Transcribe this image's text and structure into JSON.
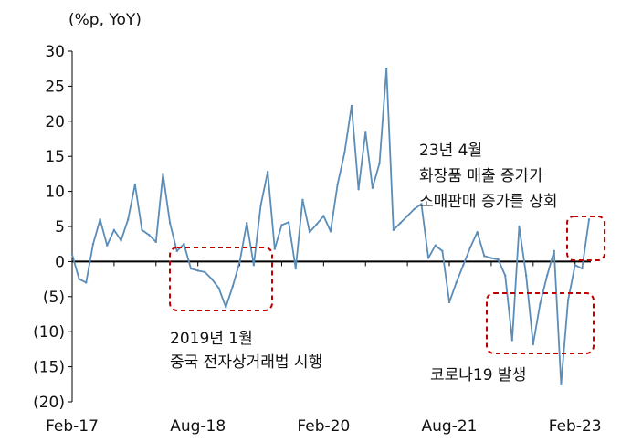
{
  "chart_data": {
    "type": "line",
    "unit_label": "(%p, YoY)",
    "ylim": [
      -20,
      30
    ],
    "y_ticks": [
      "30",
      "25",
      "20",
      "15",
      "10",
      "5",
      "0",
      "(5)",
      "(10)",
      "(15)",
      "(20)"
    ],
    "y_tick_values": [
      30,
      25,
      20,
      15,
      10,
      5,
      0,
      -5,
      -10,
      -15,
      -20
    ],
    "x_tick_labels": [
      "Feb-17",
      "Aug-18",
      "Feb-20",
      "Aug-21",
      "Feb-23"
    ],
    "x_tick_index": [
      0,
      18,
      36,
      54,
      72
    ],
    "grid": false,
    "line_color": "#5b8db8",
    "series": [
      {
        "x": [
          "2017-02",
          "2017-03",
          "2017-04",
          "2017-05",
          "2017-06",
          "2017-07",
          "2017-08",
          "2017-09",
          "2017-10",
          "2017-11",
          "2017-12",
          "2018-01",
          "2018-02",
          "2018-03",
          "2018-04",
          "2018-05",
          "2018-06",
          "2018-07",
          "2018-08",
          "2018-09",
          "2018-10",
          "2018-11",
          "2018-12",
          "2019-01",
          "2019-02",
          "2019-03",
          "2019-04",
          "2019-05",
          "2019-06",
          "2019-07",
          "2019-08",
          "2019-09",
          "2019-10",
          "2019-11",
          "2019-12",
          "2020-01",
          "2020-02",
          "2020-03",
          "2020-04",
          "2020-05",
          "2020-06",
          "2020-07",
          "2020-08",
          "2020-09",
          "2020-10",
          "2020-11",
          "2020-12",
          "2021-01",
          "2021-02",
          "2021-03",
          "2021-04",
          "2021-05",
          "2021-06",
          "2021-07",
          "2021-08",
          "2021-09",
          "2021-10",
          "2021-11",
          "2021-12",
          "2022-01",
          "2022-02",
          "2022-03",
          "2022-04",
          "2022-05",
          "2022-06",
          "2022-07",
          "2022-08",
          "2022-09",
          "2022-10",
          "2022-11",
          "2022-12",
          "2023-01",
          "2023-02",
          "2023-03",
          "2023-04"
        ],
        "values": [
          1.0,
          -2.5,
          -3.0,
          2.5,
          6.0,
          2.3,
          4.5,
          3.0,
          6.0,
          11.0,
          4.5,
          3.8,
          2.8,
          12.5,
          5.5,
          1.5,
          2.5,
          -1.0,
          -1.3,
          -1.5,
          -2.5,
          -3.8,
          -6.5,
          -3.5,
          0.0,
          5.5,
          -0.5,
          8.0,
          12.8,
          1.8,
          5.2,
          5.6,
          -1.0,
          8.8,
          4.2,
          5.3,
          6.5,
          4.3,
          11.0,
          15.5,
          22.2,
          10.3,
          18.5,
          10.5,
          14.0,
          27.5,
          4.5,
          5.5,
          6.5,
          7.5,
          8.2,
          0.5,
          2.3,
          1.5,
          -5.8,
          -3.0,
          -0.5,
          2.0,
          4.2,
          0.8,
          0.5,
          0.3,
          -2.0,
          -11.2,
          5.0,
          -2.0,
          -11.8,
          -6.0,
          -2.0,
          1.5,
          -17.5,
          -5.5,
          -0.5,
          -1.0,
          6.0
        ]
      }
    ],
    "annotations": [
      {
        "lines": [
          "2019년 1월",
          "중국 전자상거래법 시행"
        ]
      },
      {
        "lines": [
          "23년 4월",
          "화장품 매출 증가가",
          "소매판매 증가를 상회"
        ]
      },
      {
        "lines": [
          "코로나19 발생"
        ]
      }
    ]
  }
}
